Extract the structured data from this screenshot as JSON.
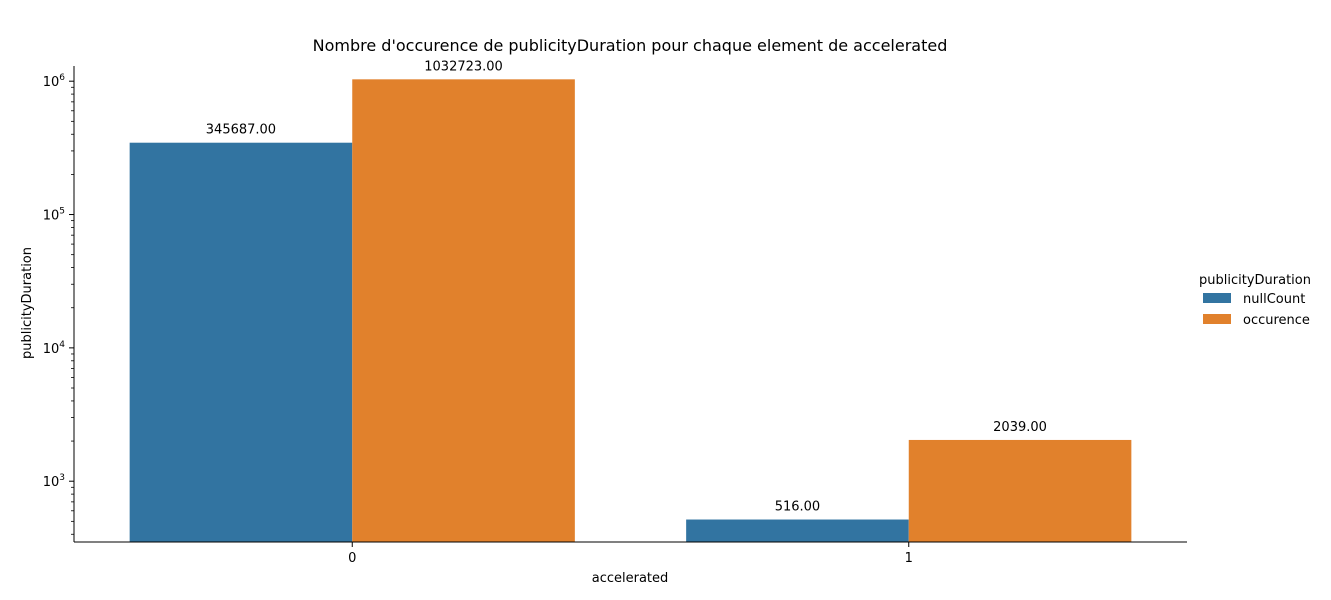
{
  "chart_data": {
    "type": "bar",
    "title": "Nombre d'occurence de publicityDuration pour chaque element de accelerated",
    "xlabel": "accelerated",
    "ylabel": "publicityDuration",
    "yscale": "log",
    "ylim": [
      350,
      1300000
    ],
    "categories": [
      "0",
      "1"
    ],
    "series": [
      {
        "name": "nullCount",
        "values": [
          345687,
          516
        ],
        "labels": [
          "345687.00",
          "516.00"
        ],
        "color": "#3274a1"
      },
      {
        "name": "occurence",
        "values": [
          1032723,
          2039
        ],
        "labels": [
          "1032723.00",
          "2039.00"
        ],
        "color": "#e1812c"
      }
    ],
    "y_ticks": [
      {
        "value": 1000,
        "base": "10",
        "exp": "3"
      },
      {
        "value": 10000,
        "base": "10",
        "exp": "4"
      },
      {
        "value": 100000,
        "base": "10",
        "exp": "5"
      },
      {
        "value": 1000000,
        "base": "10",
        "exp": "6"
      }
    ],
    "legend": {
      "title": "publicityDuration",
      "placement": "right"
    },
    "grid": false
  }
}
